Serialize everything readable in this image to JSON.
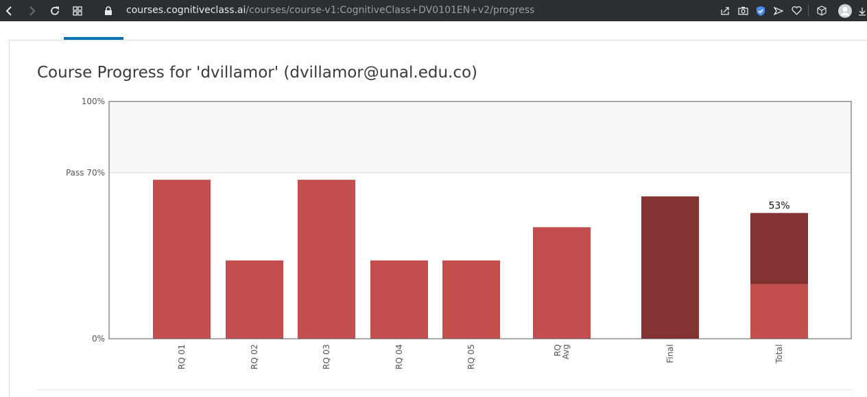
{
  "browser": {
    "url_host": "courses.cognitiveclass.ai",
    "url_path": "/courses/course-v1:CognitiveClass+DV0101EN+v2/progress"
  },
  "page": {
    "title": "Course Progress for 'dvillamor' (dvillamor@unal.edu.co)"
  },
  "colors": {
    "bar": "#c44d4d",
    "bar_dark": "#833232",
    "pass_band": "#f7f8fa",
    "tab_accent": "#0075b4"
  },
  "chart_data": {
    "type": "bar",
    "stacked_categories": [
      "Total"
    ],
    "categories": [
      "RQ 01",
      "RQ 02",
      "RQ 03",
      "RQ 04",
      "RQ 05",
      "RQ\nAvg",
      "Final",
      "Total"
    ],
    "values": [
      67,
      33,
      67,
      33,
      33,
      47,
      60,
      53
    ],
    "series_color": [
      "bar",
      "bar",
      "bar",
      "bar",
      "bar",
      "bar",
      "bar_dark",
      "stacked"
    ],
    "total_stack": {
      "lower": 23,
      "upper": 30
    },
    "total_label": "53%",
    "ylim": [
      0,
      100
    ],
    "y_ticks": [
      {
        "value": 100,
        "label": "100%"
      },
      {
        "value": 70,
        "label": "Pass 70%"
      },
      {
        "value": 0,
        "label": "0%"
      }
    ],
    "pass_threshold": 70,
    "title": "",
    "xlabel": "",
    "ylabel": ""
  }
}
